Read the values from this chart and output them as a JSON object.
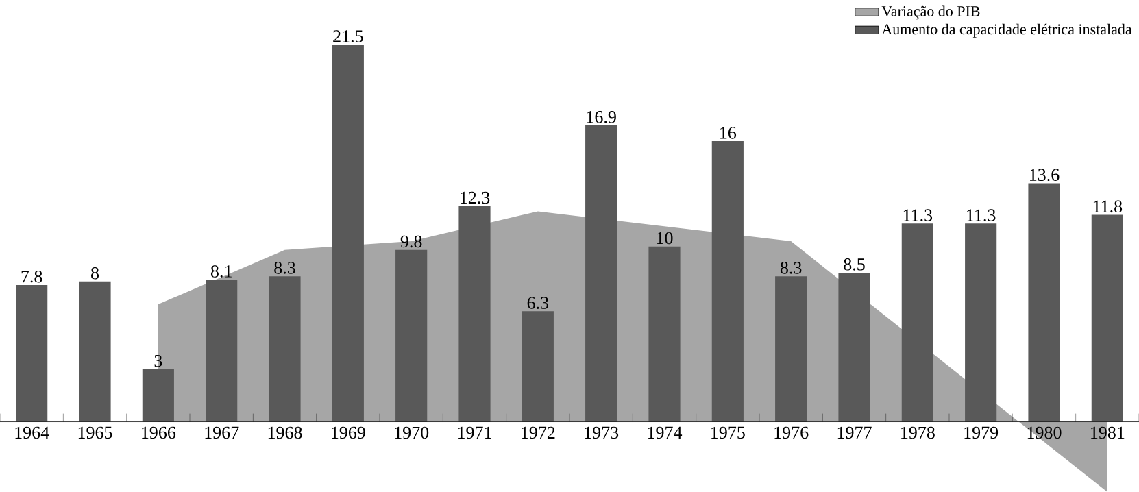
{
  "chart_data": {
    "type": "bar",
    "categories": [
      "1964",
      "1965",
      "1966",
      "1967",
      "1968",
      "1969",
      "1970",
      "1971",
      "1972",
      "1973",
      "1974",
      "1975",
      "1976",
      "1977",
      "1978",
      "1979",
      "1980",
      "1981"
    ],
    "series": [
      {
        "name": "Variação do PIB",
        "type": "area",
        "color": "#a6a6a6",
        "values": [
          null,
          null,
          6.7,
          null,
          9.8,
          null,
          10.3,
          null,
          12.0,
          null,
          null,
          null,
          10.3,
          null,
          null,
          null,
          null,
          -4.0
        ]
      },
      {
        "name": "Aumento da capacidade elétrica instalada",
        "color": "#595959",
        "values": [
          7.8,
          8,
          3,
          8.1,
          8.3,
          21.5,
          9.8,
          12.3,
          6.3,
          16.9,
          10,
          16,
          8.3,
          8.5,
          11.3,
          11.3,
          13.6,
          11.8
        ],
        "value_labels": [
          "7.8",
          "8",
          "3",
          "8.1",
          "8.3",
          "21.5",
          "9.8",
          "12.3",
          "6.3",
          "16.9",
          "10",
          "16",
          "8.3",
          "8.5",
          "11.3",
          "11.3",
          "13.6",
          "11.8"
        ]
      }
    ],
    "tick_labels": "x",
    "legend": "top right"
  }
}
